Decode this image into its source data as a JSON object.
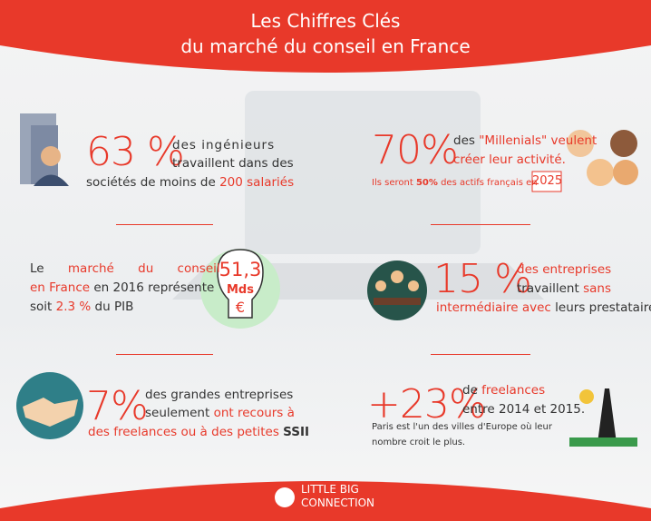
{
  "header": {
    "title": [
      "Les Chiffres Clés",
      "du marché du conseil en France"
    ]
  },
  "stats": [
    {
      "big": "63 %",
      "lines": [
        [
          "des ingénieurs"
        ],
        [
          "travaillent dans des"
        ],
        [
          "sociétés de moins de",
          "200 salariés"
        ]
      ]
    },
    {
      "big": "70%",
      "lines": [
        [
          "des",
          "\"Millenials\"",
          "veulent"
        ],
        [
          "créer leur activité."
        ],
        [
          "Ils seront",
          "50%",
          "des actifs français en"
        ]
      ],
      "badge": "2025"
    },
    {
      "lines": [
        [
          "Le",
          "marché du conseil"
        ],
        [
          "en France",
          "en 2016 représente"
        ],
        [
          "soit",
          "2.3 %",
          "du PIB"
        ]
      ],
      "bulb": [
        "51,3",
        "Mds",
        "€"
      ]
    },
    {
      "big": "15 %",
      "lines": [
        [
          "des entreprises"
        ],
        [
          "travaillent",
          "sans"
        ],
        [
          "intermédiaire avec",
          "leurs prestataires"
        ]
      ]
    },
    {
      "big": "7%",
      "lines": [
        [
          "des grandes entreprises"
        ],
        [
          "seulement",
          "ont recours à"
        ],
        [
          "des freelances ou à des petites",
          "SSII"
        ]
      ]
    },
    {
      "big": "+23%",
      "lines": [
        [
          "de",
          "freelances"
        ],
        [
          "entre 2014 et 2015."
        ]
      ],
      "note": "Paris est l'un des villes d'Europe où leur nombre croit le plus."
    }
  ],
  "footer": {
    "brand": [
      "LITTLE BIG",
      "CONNECTION"
    ]
  }
}
